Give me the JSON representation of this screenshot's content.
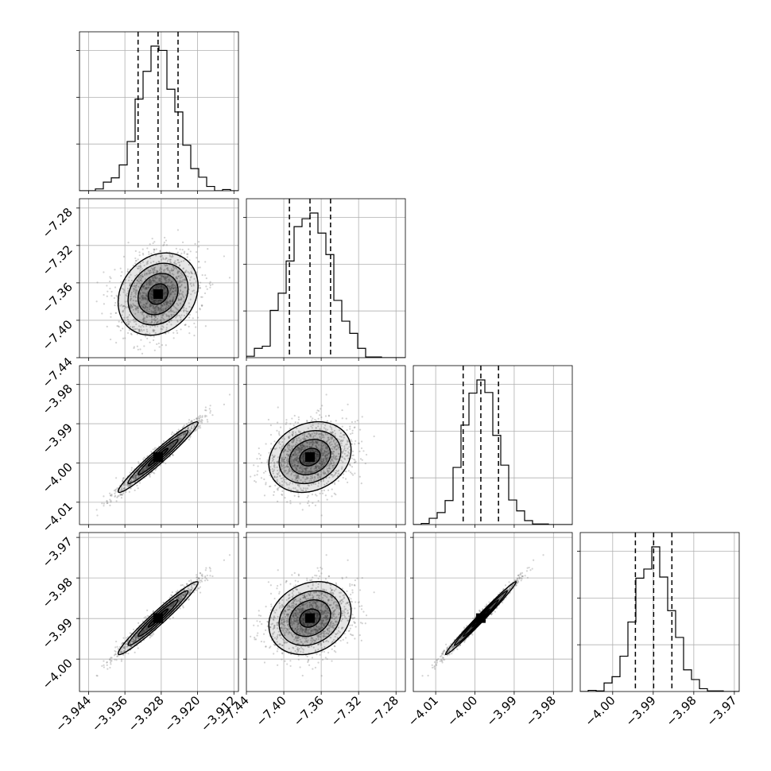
{
  "chart_data": {
    "type": "corner",
    "parameters": [
      {
        "range": [
          -3.946,
          -3.911
        ],
        "mean": -3.9287,
        "std": 0.0044,
        "quantiles": [
          -3.9331,
          -3.9287,
          -3.9243
        ],
        "ticks": [
          -3.944,
          -3.936,
          -3.928,
          -3.92,
          -3.912
        ],
        "tick_labels": [
          "−3.944",
          "−3.936",
          "−3.928",
          "−3.920",
          "−3.912"
        ]
      },
      {
        "range": [
          -7.44,
          -7.27
        ],
        "mean": -7.372,
        "std": 0.022,
        "quantiles": [
          -7.394,
          -7.372,
          -7.35
        ],
        "ticks": [
          -7.44,
          -7.4,
          -7.36,
          -7.32,
          -7.28
        ],
        "tick_labels": [
          "−7.44",
          "−7.40",
          "−7.36",
          "−7.32",
          "−7.28"
        ]
      },
      {
        "range": [
          -4.0157,
          -3.9752
        ],
        "mean": -3.9985,
        "std": 0.0045,
        "quantiles": [
          -4.003,
          -3.9985,
          -3.994
        ],
        "ticks": [
          -4.01,
          -4.0,
          -3.99,
          -3.98
        ],
        "tick_labels": [
          "−4.01",
          "−4.00",
          "−3.99",
          "−3.98"
        ]
      },
      {
        "range": [
          -4.008,
          -3.9688
        ],
        "mean": -3.9899,
        "std": 0.0045,
        "quantiles": [
          -3.9944,
          -3.9899,
          -3.9854
        ],
        "ticks": [
          -4.0,
          -3.99,
          -3.98,
          -3.97
        ],
        "tick_labels": [
          "−4.00",
          "−3.99",
          "−3.98",
          "−3.97"
        ]
      }
    ],
    "correlations": [
      [
        1,
        0.2,
        0.97,
        0.97
      ],
      [
        0.2,
        1,
        0.2,
        0.2
      ],
      [
        0.97,
        0.2,
        1,
        0.99
      ],
      [
        0.97,
        0.2,
        0.99,
        1
      ]
    ],
    "contour_levels_sigma": [
      0.5,
      1.0,
      1.5,
      2.0
    ],
    "grid": true,
    "colors": {
      "line": "#000000",
      "grid": "#b0b0b0",
      "scatter": "#7f7f7f"
    }
  }
}
